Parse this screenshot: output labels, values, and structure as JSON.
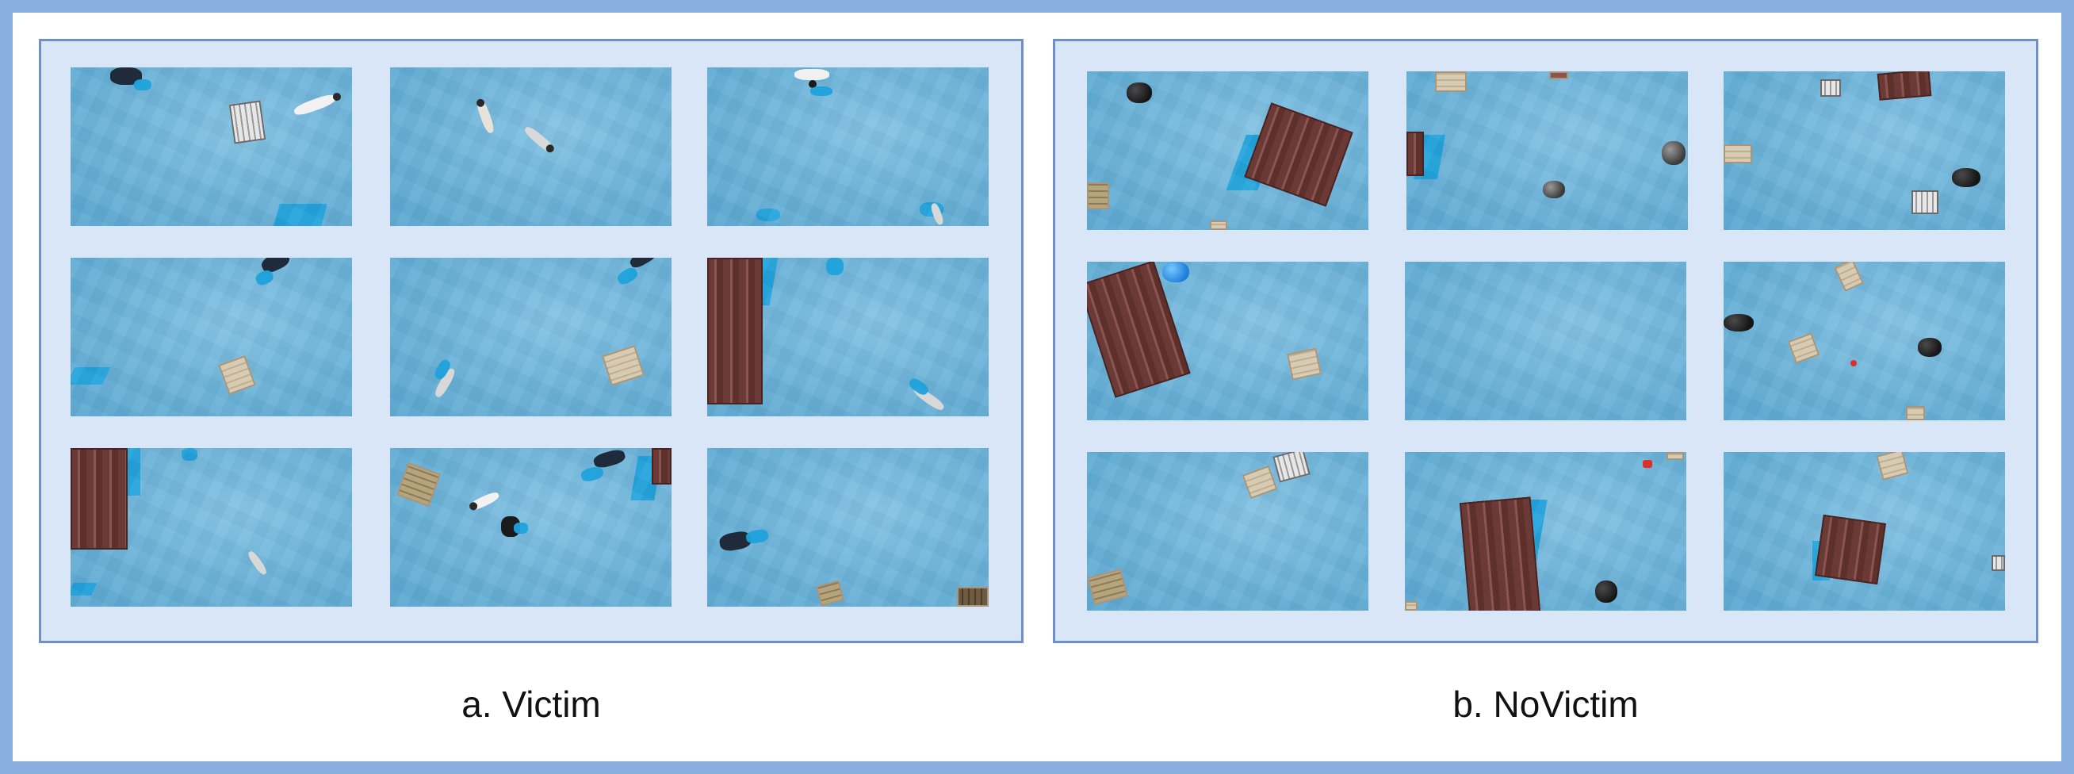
{
  "figure": {
    "panels": [
      {
        "id": "a",
        "caption": "a. Victim"
      },
      {
        "id": "b",
        "caption": "b. NoVictim"
      }
    ]
  },
  "colors": {
    "outer_frame": "#8aaee0",
    "panel_border": "#6f8fc8",
    "panel_background": "#d9e6f8",
    "water": "#6fb5da"
  }
}
